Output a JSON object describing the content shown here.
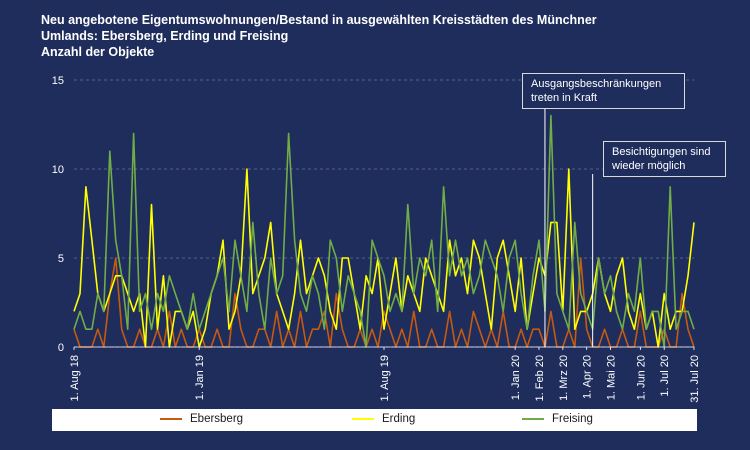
{
  "title_lines": [
    "Neu angebotene Eigentumswohnungen/Bestand in ausgewählten Kreisstädten des Münchner",
    "Umlands:  Ebersberg, Erding und Freising",
    "Anzahl der Objekte"
  ],
  "colors": {
    "background": "#1f2d5c",
    "ebersberg": "#c55a11",
    "erding": "#ffff00",
    "freising": "#70ad47",
    "grid": "#8a93b8"
  },
  "annotations": [
    {
      "text_lines": [
        "Ausgangsbeschränkungen",
        "treten in Kraft"
      ],
      "x_index": 79
    },
    {
      "text_lines": [
        "Besichtigungen sind",
        "wieder möglich"
      ],
      "x_index": 87
    }
  ],
  "chart_data": {
    "type": "line",
    "title": "Neu angebotene Eigentumswohnungen/Bestand in ausgewählten Kreisstädten des Münchner Umlands:  Ebersberg, Erding und Freising",
    "ylabel": "Anzahl der Objekte",
    "xlabel": "",
    "ylim": [
      0,
      15
    ],
    "yticks": [
      0,
      5,
      10,
      15
    ],
    "grid": true,
    "legend_position": "bottom",
    "x_range": [
      "1. Aug 18",
      "31. Jul 20"
    ],
    "xticks": [
      {
        "label": "1. Aug 18",
        "index": 0
      },
      {
        "label": "1. Jan 19",
        "index": 21
      },
      {
        "label": "1. Aug 19",
        "index": 52
      },
      {
        "label": "1. Jan 20",
        "index": 74
      },
      {
        "label": "1. Feb 20",
        "index": 78
      },
      {
        "label": "1. Mrz 20",
        "index": 82
      },
      {
        "label": "1. Apr 20",
        "index": 86
      },
      {
        "label": "1. Mai 20",
        "index": 90
      },
      {
        "label": "1. Jun 20",
        "index": 95
      },
      {
        "label": "1. Jul 20",
        "index": 99
      },
      {
        "label": "31. Jul 20",
        "index": 104
      }
    ],
    "series": [
      {
        "name": "Ebersberg",
        "color": "#c55a11",
        "values": [
          1,
          0,
          0,
          0,
          1,
          0,
          3,
          5,
          1,
          0,
          0,
          1,
          0,
          0,
          1,
          0,
          2,
          0,
          1,
          0,
          0,
          1,
          0,
          0,
          1,
          0,
          0,
          3,
          1,
          0,
          0,
          1,
          1,
          0,
          2,
          0,
          1,
          0,
          2,
          0,
          1,
          1,
          2,
          0,
          3,
          1,
          0,
          0,
          1,
          0,
          1,
          0,
          2,
          1,
          0,
          1,
          0,
          2,
          0,
          0,
          1,
          0,
          0,
          2,
          0,
          1,
          0,
          2,
          1,
          0,
          1,
          0,
          2,
          0,
          0,
          1,
          0,
          1,
          1,
          0,
          2,
          0,
          0,
          1,
          0,
          5,
          1,
          0,
          0,
          1,
          0,
          0,
          1,
          0,
          0,
          2,
          0,
          0,
          0,
          1,
          0,
          0,
          3,
          1,
          0
        ]
      },
      {
        "name": "Erding",
        "color": "#ffff00",
        "values": [
          2,
          3,
          9,
          6,
          3,
          2,
          3,
          4,
          4,
          3,
          2,
          3,
          0,
          8,
          1,
          4,
          0,
          2,
          2,
          1,
          2,
          0,
          1,
          3,
          4,
          6,
          1,
          2,
          4,
          10,
          3,
          4,
          5,
          7,
          3,
          2,
          1,
          3,
          6,
          3,
          4,
          5,
          4,
          2,
          1,
          5,
          5,
          3,
          1,
          4,
          3,
          5,
          1,
          3,
          5,
          2,
          4,
          3,
          2,
          5,
          4,
          3,
          2,
          6,
          4,
          5,
          3,
          6,
          5,
          3,
          1,
          5,
          6,
          4,
          2,
          5,
          1,
          3,
          5,
          4,
          7,
          7,
          2,
          10,
          1,
          2,
          2,
          3,
          5,
          3,
          2,
          4,
          5,
          2,
          1,
          3,
          1,
          2,
          0,
          3,
          1,
          2,
          2,
          4,
          7
        ]
      },
      {
        "name": "Freising",
        "color": "#70ad47",
        "values": [
          1,
          2,
          1,
          1,
          3,
          2,
          11,
          6,
          4,
          1,
          12,
          2,
          3,
          1,
          3,
          2,
          4,
          3,
          2,
          1,
          3,
          1,
          2,
          3,
          4,
          5,
          2,
          6,
          4,
          2,
          7,
          3,
          1,
          5,
          3,
          4,
          12,
          6,
          3,
          2,
          4,
          3,
          1,
          6,
          5,
          2,
          4,
          3,
          2,
          0,
          6,
          5,
          4,
          2,
          3,
          2,
          8,
          3,
          5,
          4,
          6,
          2,
          9,
          4,
          6,
          4,
          5,
          3,
          4,
          6,
          5,
          4,
          2,
          5,
          6,
          3,
          1,
          4,
          6,
          2,
          13,
          3,
          2,
          1,
          7,
          3,
          2,
          1,
          5,
          3,
          4,
          2,
          1,
          3,
          2,
          5,
          1,
          2,
          2,
          0,
          9,
          1,
          2,
          2,
          1
        ]
      }
    ]
  },
  "legend": [
    {
      "label": "Ebersberg",
      "color": "#c55a11"
    },
    {
      "label": "Erding",
      "color": "#ffff00"
    },
    {
      "label": "Freising",
      "color": "#70ad47"
    }
  ]
}
